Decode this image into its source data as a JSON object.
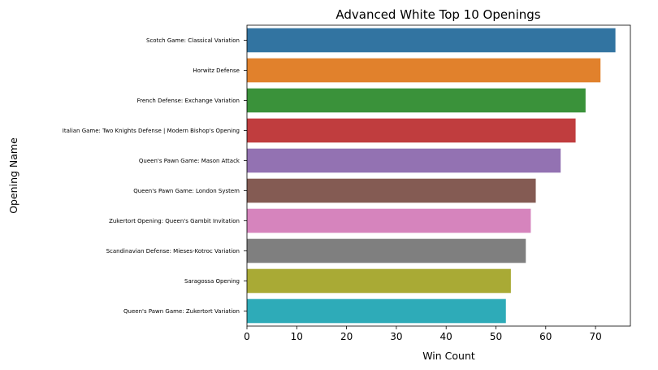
{
  "chart_data": {
    "type": "bar",
    "orientation": "horizontal",
    "title": "Advanced White Top 10 Openings",
    "xlabel": "Win Count",
    "ylabel": "Opening Name",
    "xlim": [
      0,
      77
    ],
    "xticks": [
      0,
      10,
      20,
      30,
      40,
      50,
      60,
      70
    ],
    "grid": false,
    "categories": [
      "Scotch Game: Classical Variation",
      "Horwitz Defense",
      "French Defense: Exchange Variation",
      "Italian Game: Two Knights Defense |  Modern Bishop's Opening",
      "Queen's Pawn Game: Mason Attack",
      "Queen's Pawn Game: London System",
      "Zukertort Opening: Queen's Gambit Invitation",
      "Scandinavian Defense: Mieses-Kotroc Variation",
      "Saragossa Opening",
      "Queen's Pawn Game: Zukertort Variation"
    ],
    "values": [
      74,
      71,
      68,
      66,
      63,
      58,
      57,
      56,
      53,
      52
    ],
    "colors": [
      "#3274a1",
      "#e1812c",
      "#3a923a",
      "#c03d3e",
      "#9372b2",
      "#845b53",
      "#d684bd",
      "#7f7f7f",
      "#a9aa35",
      "#2eabb8"
    ]
  }
}
